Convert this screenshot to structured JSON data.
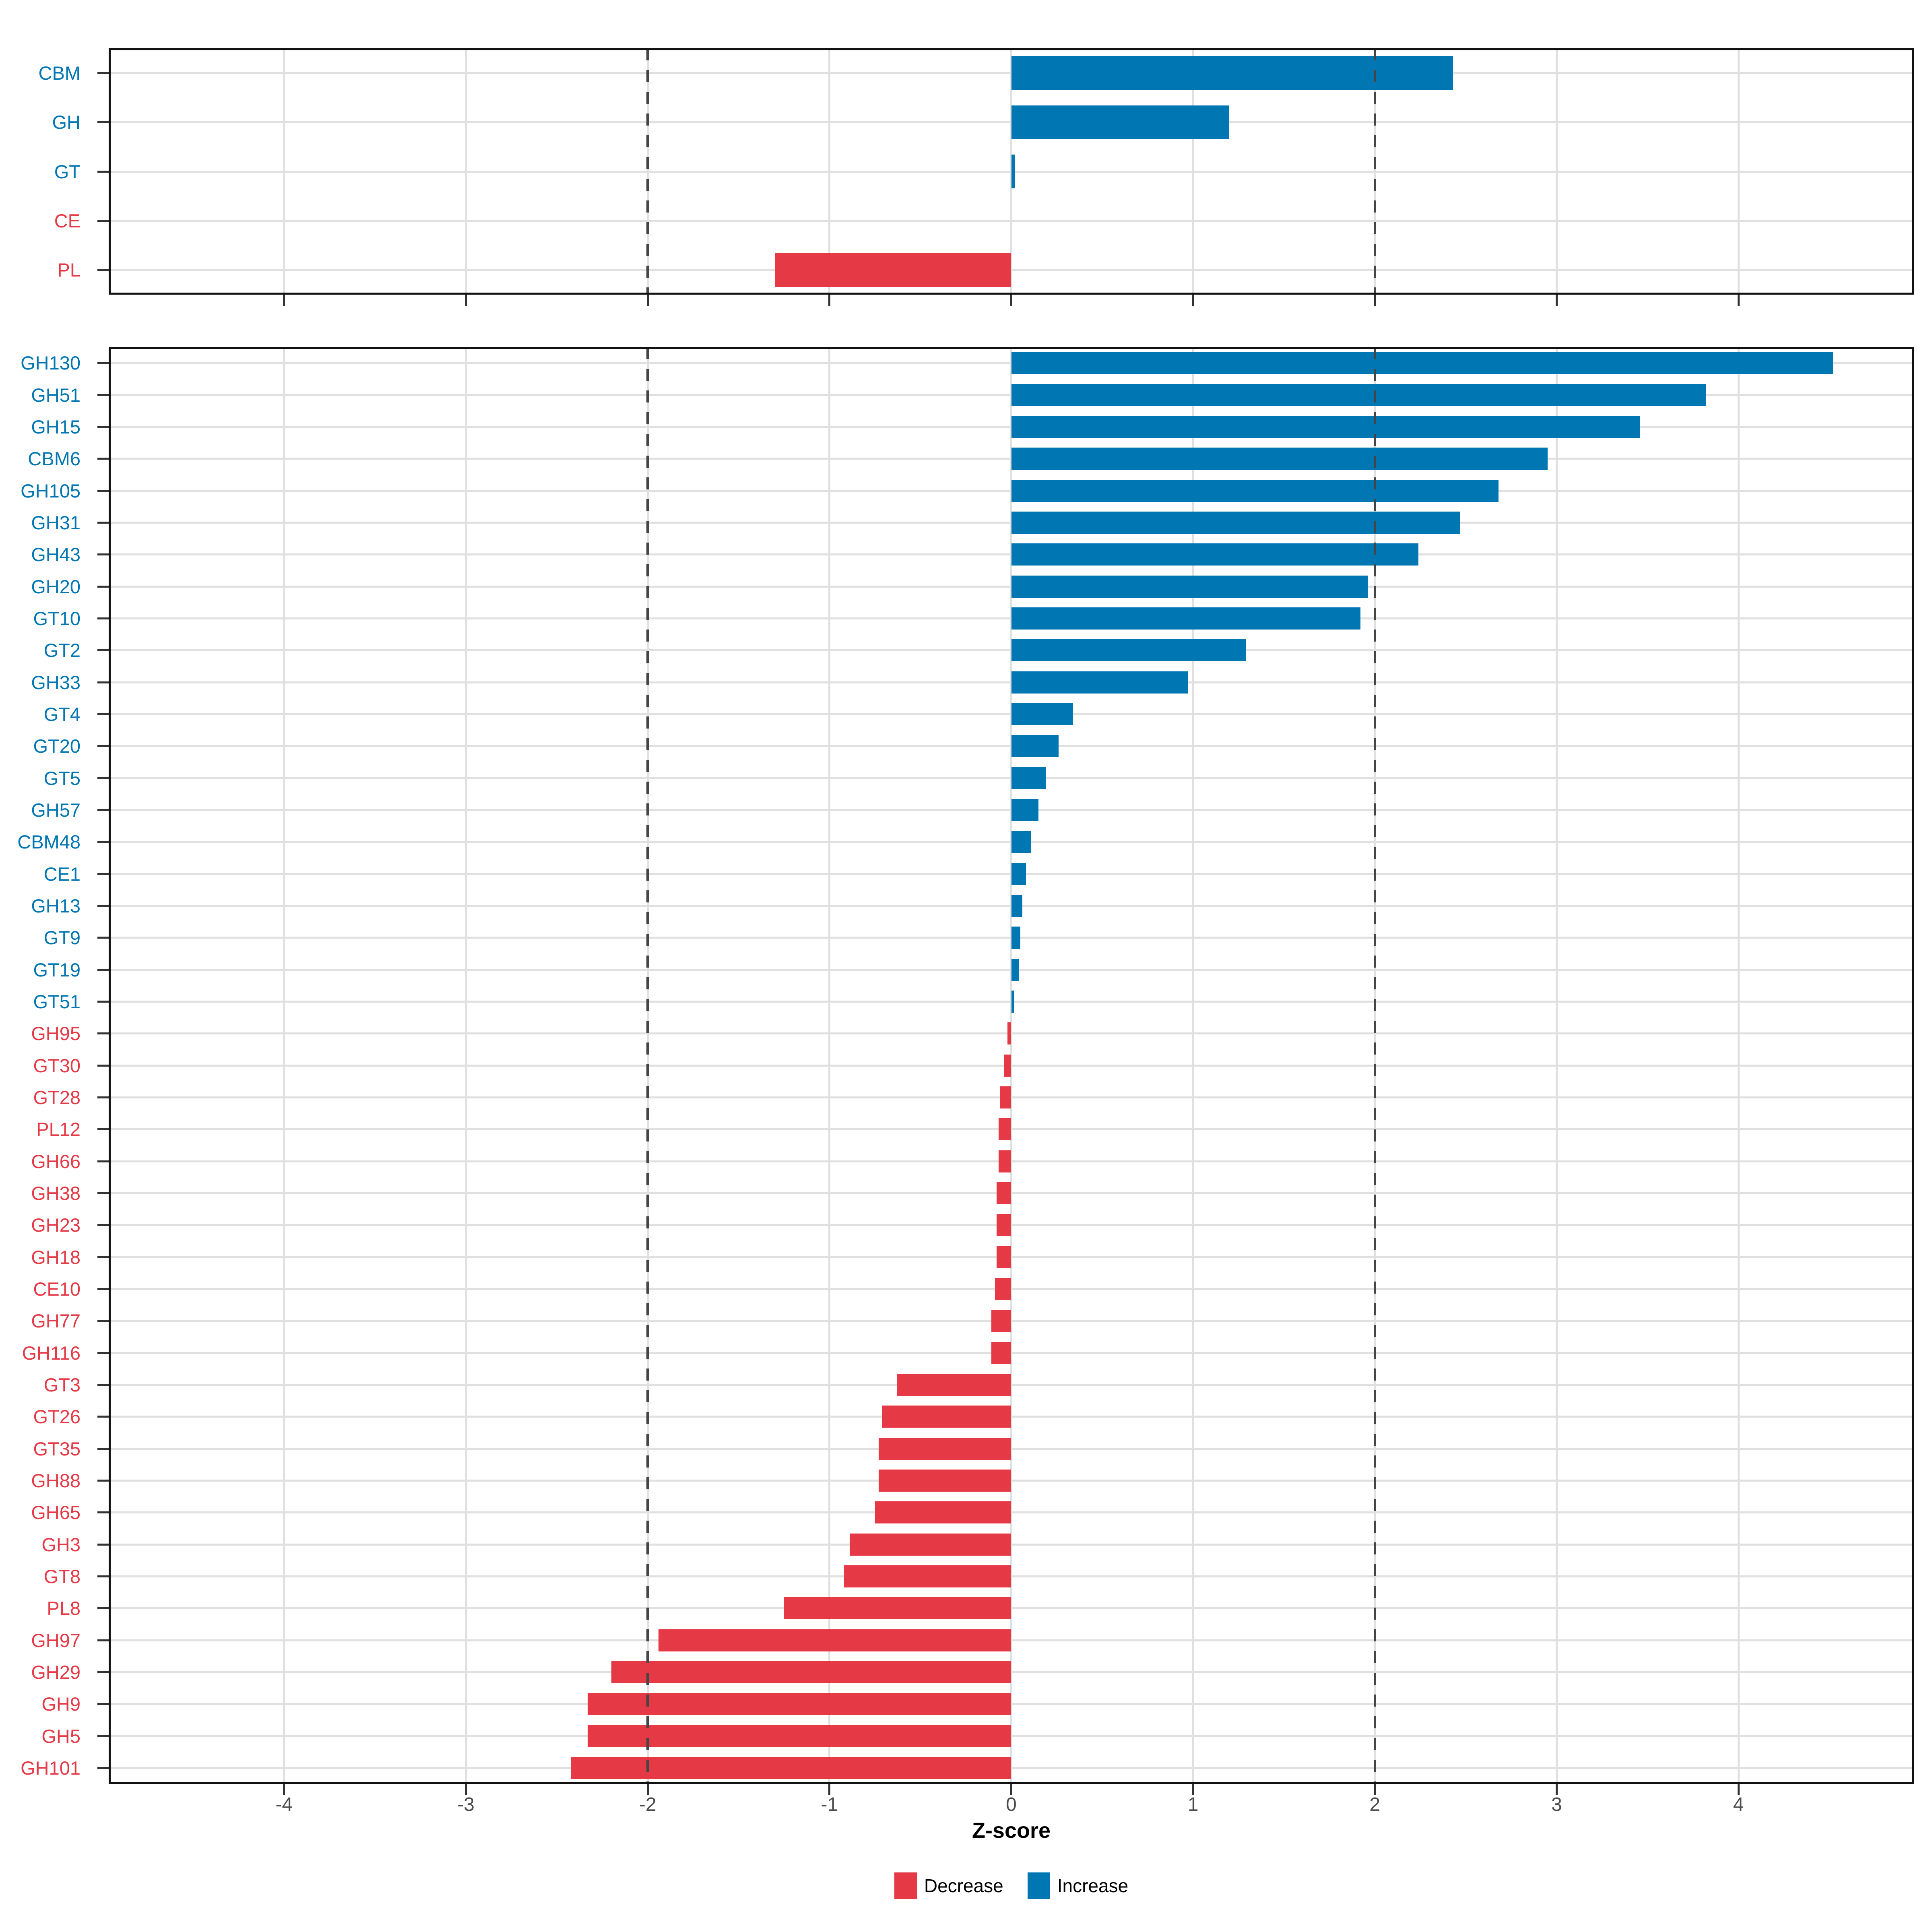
{
  "figure": {
    "background": "#FFFFFF"
  },
  "axis": {
    "label": "Z-score",
    "tick_values": [
      -4,
      -3,
      -2,
      -1,
      0,
      1,
      2,
      3,
      4
    ],
    "tick_labels": [
      "-4",
      "-3",
      "-2",
      "-1",
      "0",
      "1",
      "2",
      "3",
      "4"
    ],
    "range": [
      -4.965,
      4.965
    ],
    "dashed_at": [
      -2,
      2
    ]
  },
  "colors": {
    "increase": "#0076B2",
    "decrease": "#E53946",
    "grid": "#E0E0E0",
    "dashed_line": "#454545",
    "panel_border": "#121212",
    "axis_text": "#4D4D4D",
    "tick_mark": "#333333"
  },
  "legend": {
    "items": [
      {
        "label": "Decrease",
        "color": "#E53946"
      },
      {
        "label": "Increase",
        "color": "#0076B2"
      }
    ]
  },
  "chart_data": [
    {
      "id": "cazyme-class-panel",
      "type": "bar",
      "orientation": "horizontal",
      "categories": [
        "CBM",
        "GH",
        "GT",
        "CE",
        "PL"
      ],
      "values": [
        2.43,
        1.2,
        0.02,
        0.0,
        -1.3
      ],
      "xlim": [
        -4.965,
        4.965
      ],
      "grid": true,
      "xlabel": "Z-score",
      "legend_position": "bottom"
    },
    {
      "id": "cazyme-family-panel",
      "type": "bar",
      "orientation": "horizontal",
      "categories": [
        "GH130",
        "GH51",
        "GH15",
        "CBM6",
        "GH105",
        "GH31",
        "GH43",
        "GH20",
        "GT10",
        "GT2",
        "GH33",
        "GT4",
        "GT20",
        "GT5",
        "GH57",
        "CBM48",
        "CE1",
        "GH13",
        "GT9",
        "GT19",
        "GT51",
        "GH95",
        "GT30",
        "GT28",
        "PL12",
        "GH66",
        "GH38",
        "GH23",
        "GH18",
        "CE10",
        "GH77",
        "GH116",
        "GT3",
        "GT26",
        "GT35",
        "GH88",
        "GH65",
        "GH3",
        "GT8",
        "PL8",
        "GH97",
        "GH29",
        "GH9",
        "GH5",
        "GH101"
      ],
      "values": [
        4.52,
        3.82,
        3.46,
        2.95,
        2.68,
        2.47,
        2.24,
        1.96,
        1.92,
        1.29,
        0.97,
        0.34,
        0.26,
        0.19,
        0.15,
        0.11,
        0.08,
        0.06,
        0.05,
        0.04,
        0.015,
        -0.02,
        -0.04,
        -0.06,
        -0.07,
        -0.07,
        -0.08,
        -0.08,
        -0.08,
        -0.09,
        -0.11,
        -0.11,
        -0.63,
        -0.71,
        -0.73,
        -0.73,
        -0.75,
        -0.89,
        -0.92,
        -1.25,
        -1.94,
        -2.2,
        -2.33,
        -2.33,
        -2.42
      ],
      "xlim": [
        -4.965,
        4.965
      ],
      "grid": true,
      "xlabel": "Z-score"
    }
  ]
}
